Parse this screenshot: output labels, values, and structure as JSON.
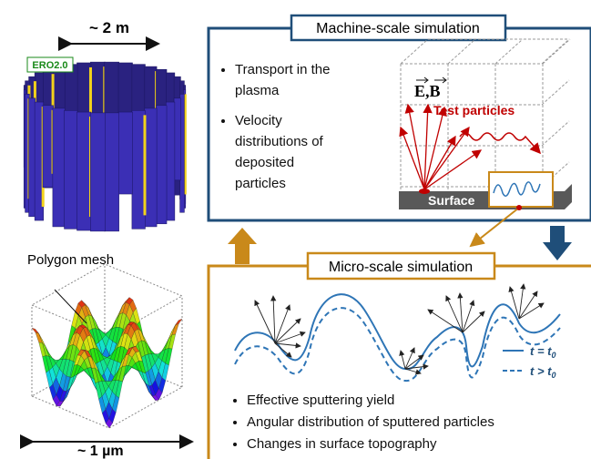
{
  "left": {
    "size_top": "~ 2 m",
    "badge": "ERO2.0",
    "mesh_label": "Polygon mesh",
    "size_bottom": "~ 1 µm"
  },
  "machine": {
    "title": "Machine-scale simulation",
    "bullets": [
      "Transport in the plasma",
      "Velocity distributions of deposited particles"
    ],
    "fields": "E,B",
    "test_particles": "Test particles",
    "surface": "Surface"
  },
  "micro": {
    "title": "Micro-scale simulation",
    "legend": [
      {
        "label": "t = t",
        "sub": "0"
      },
      {
        "label": "t > t",
        "sub": "0"
      }
    ],
    "bullets": [
      "Effective sputtering yield",
      "Angular distribution of sputtered particles",
      "Changes in surface topography"
    ]
  }
}
